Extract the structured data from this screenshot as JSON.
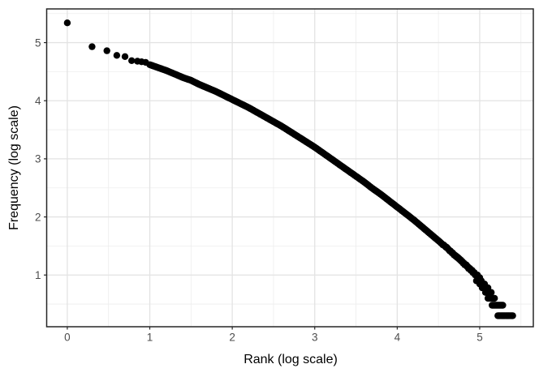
{
  "figure": {
    "background": "#ffffff",
    "panel_fill": "#ffffff",
    "panel_border_color": "#262626",
    "grid_major_color": "#e3e3e3",
    "grid_minor_color": "#ededed",
    "tick_color": "#262626",
    "tick_label_color": "#4d4d4d",
    "axis_title_color": "#000000"
  },
  "chart_data": {
    "type": "scatter",
    "title": "",
    "xlabel": "Rank (log scale)",
    "ylabel": "Frequency (log scale)",
    "legend": "none",
    "grid": "major and minor, light gray on white panel with dark border",
    "point_color": "#000000",
    "x_ticks": [
      0,
      1,
      2,
      3,
      4,
      5
    ],
    "x_tick_labels": [
      "0",
      "1",
      "2",
      "3",
      "4",
      "5"
    ],
    "y_ticks": [
      1,
      2,
      3,
      4,
      5
    ],
    "y_tick_labels": [
      "1",
      "2",
      "3",
      "4",
      "5"
    ],
    "xlim": [
      -0.25,
      5.65
    ],
    "ylim": [
      0.11,
      5.58
    ],
    "head_points": [
      [
        0.0,
        5.34
      ],
      [
        0.3,
        4.93
      ],
      [
        0.48,
        4.86
      ],
      [
        0.6,
        4.78
      ],
      [
        0.7,
        4.76
      ],
      [
        0.78,
        4.69
      ],
      [
        0.85,
        4.68
      ],
      [
        0.9,
        4.67
      ],
      [
        0.95,
        4.66
      ]
    ],
    "band_points": [
      [
        1.0,
        4.62
      ],
      [
        1.1,
        4.57
      ],
      [
        1.2,
        4.52
      ],
      [
        1.3,
        4.46
      ],
      [
        1.4,
        4.4
      ],
      [
        1.5,
        4.35
      ],
      [
        1.6,
        4.28
      ],
      [
        1.7,
        4.22
      ],
      [
        1.8,
        4.16
      ],
      [
        1.9,
        4.09
      ],
      [
        2.0,
        4.02
      ],
      [
        2.1,
        3.95
      ],
      [
        2.2,
        3.88
      ],
      [
        2.3,
        3.8
      ],
      [
        2.4,
        3.72
      ],
      [
        2.5,
        3.64
      ],
      [
        2.6,
        3.56
      ],
      [
        2.7,
        3.47
      ],
      [
        2.8,
        3.38
      ],
      [
        2.9,
        3.29
      ],
      [
        3.0,
        3.2
      ],
      [
        3.1,
        3.1
      ],
      [
        3.2,
        3.0
      ],
      [
        3.3,
        2.9
      ],
      [
        3.4,
        2.8
      ],
      [
        3.5,
        2.7
      ],
      [
        3.6,
        2.6
      ],
      [
        3.7,
        2.49
      ],
      [
        3.8,
        2.39
      ],
      [
        3.9,
        2.28
      ],
      [
        4.0,
        2.17
      ],
      [
        4.1,
        2.06
      ],
      [
        4.2,
        1.95
      ],
      [
        4.3,
        1.83
      ],
      [
        4.4,
        1.71
      ],
      [
        4.5,
        1.59
      ],
      [
        4.6,
        1.47
      ],
      [
        4.7,
        1.34
      ],
      [
        4.8,
        1.21
      ],
      [
        4.9,
        1.08
      ],
      [
        5.0,
        0.95
      ]
    ],
    "tail_runs": [
      {
        "y": 0.9,
        "x_start": 4.96,
        "x_end": 5.02
      },
      {
        "y": 0.845,
        "x_start": 5.0,
        "x_end": 5.06
      },
      {
        "y": 0.78,
        "x_start": 5.03,
        "x_end": 5.1
      },
      {
        "y": 0.7,
        "x_start": 5.07,
        "x_end": 5.14
      },
      {
        "y": 0.6,
        "x_start": 5.1,
        "x_end": 5.18
      },
      {
        "y": 0.48,
        "x_start": 5.15,
        "x_end": 5.28
      },
      {
        "y": 0.3,
        "x_start": 5.22,
        "x_end": 5.4
      }
    ]
  }
}
